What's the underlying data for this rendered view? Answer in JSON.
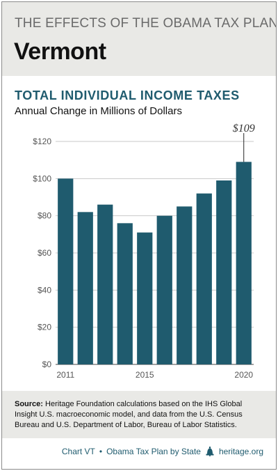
{
  "header": {
    "series_title": "THE EFFECTS OF THE OBAMA TAX PLAN",
    "state": "Vermont"
  },
  "chart_data": {
    "type": "bar",
    "title": "TOTAL INDIVIDUAL INCOME TAXES",
    "subtitle": "Annual Change in Millions of Dollars",
    "categories": [
      "2011",
      "2012",
      "2013",
      "2014",
      "2015",
      "2016",
      "2017",
      "2018",
      "2019",
      "2020"
    ],
    "x_tick_labels": [
      "2011",
      "2015",
      "2020"
    ],
    "values": [
      100,
      82,
      86,
      76,
      71,
      80,
      85,
      92,
      99,
      109
    ],
    "y_tick_labels": [
      "$0",
      "$20",
      "$40",
      "$60",
      "$80",
      "$100",
      "$120"
    ],
    "ylim": [
      0,
      120
    ],
    "annotation": {
      "category": "2020",
      "label": "$109"
    },
    "grid": true,
    "bar_color": "#1f5b6e"
  },
  "source": {
    "label": "Source:",
    "text": "Heritage Foundation calculations based on the IHS Global Insight U.S. macroeconomic model, and data from the U.S. Census Bureau and U.S. Department of Labor, Bureau of Labor Statistics."
  },
  "footer": {
    "chart_id": "Chart VT",
    "series": "Obama Tax Plan by State",
    "site": "heritage.org"
  }
}
